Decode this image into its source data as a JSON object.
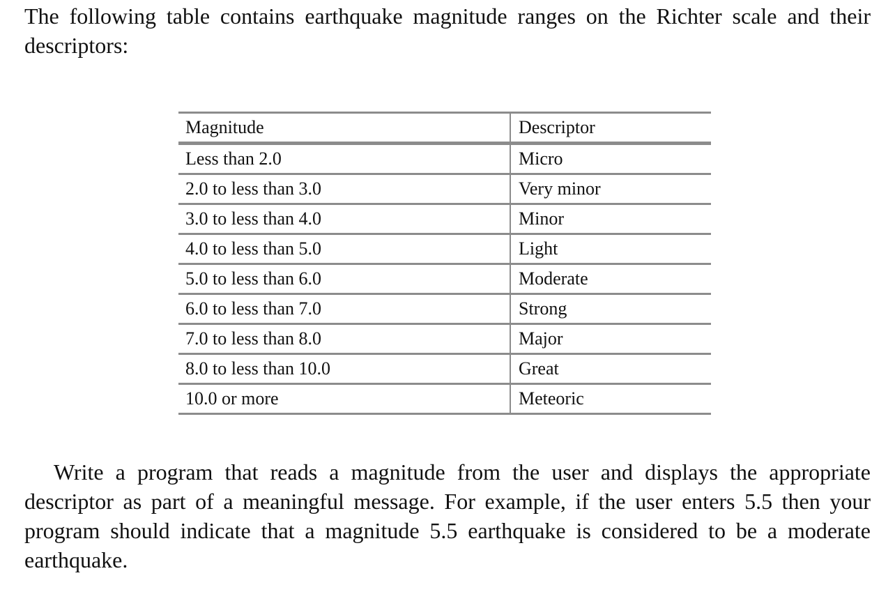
{
  "intro": "The following table contains earthquake magnitude ranges on the Richter scale and their descriptors:",
  "table": {
    "headers": [
      "Magnitude",
      "Descriptor"
    ],
    "rows": [
      [
        "Less than 2.0",
        "Micro"
      ],
      [
        "2.0 to less than 3.0",
        "Very minor"
      ],
      [
        "3.0 to less than 4.0",
        "Minor"
      ],
      [
        "4.0 to less than 5.0",
        "Light"
      ],
      [
        "5.0 to less than 6.0",
        "Moderate"
      ],
      [
        "6.0 to less than 7.0",
        "Strong"
      ],
      [
        "7.0 to less than 8.0",
        "Major"
      ],
      [
        "8.0 to less than 10.0",
        "Great"
      ],
      [
        "10.0 or more",
        "Meteoric"
      ]
    ]
  },
  "task": "Write a program that reads a magnitude from the user and displays the appropriate descriptor as part of a meaningful message. For example, if the user enters 5.5 then your program should indicate that a magnitude 5.5 earthquake is considered to be a moderate earthquake."
}
